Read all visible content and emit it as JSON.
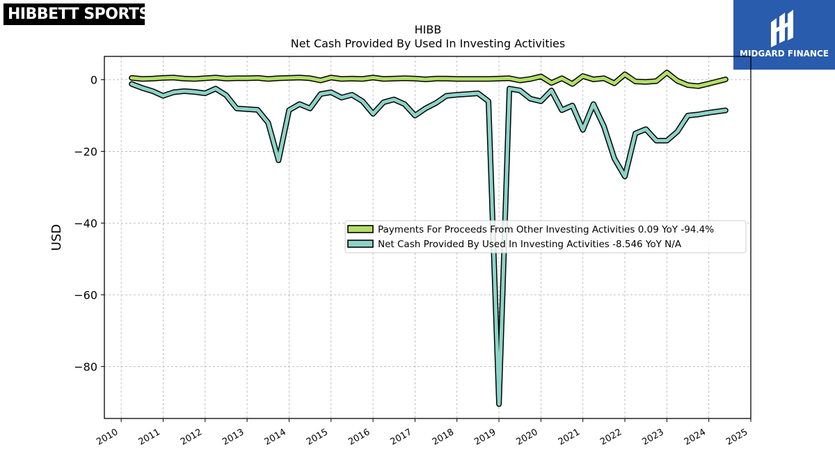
{
  "brand_left": {
    "text": "HIBBETT SPORTS",
    "mark": "®"
  },
  "brand_right": {
    "text": "MIDGARD FINANCE",
    "icon": "midgard-m-icon",
    "color": "#2a5cad"
  },
  "chart_data": {
    "type": "line",
    "title": "HIBB",
    "subtitle": "Net Cash Provided By Used In Investing Activities",
    "xlabel": "",
    "ylabel": "USD",
    "xlim": [
      2009.6,
      2025.0
    ],
    "ylim": [
      -94.5,
      6.5
    ],
    "x_ticks": [
      2010,
      2011,
      2012,
      2013,
      2014,
      2015,
      2016,
      2017,
      2018,
      2019,
      2020,
      2021,
      2022,
      2023,
      2024,
      2025
    ],
    "y_ticks": [
      0,
      -20,
      -40,
      -60,
      -80
    ],
    "y_tick_labels": [
      "0",
      "−20",
      "−40",
      "−60",
      "−80"
    ],
    "grid": true,
    "legend_position": "center-right",
    "series": [
      {
        "name": "Payments For Proceeds From Other Investing Activities",
        "legend_label": "Payments For Proceeds From Other Investing Activities  0.09 YoY -94.4%",
        "color": "#b3de69",
        "points": [
          [
            2010.25,
            0.5
          ],
          [
            2010.5,
            0.2
          ],
          [
            2010.75,
            0.3
          ],
          [
            2011.0,
            0.5
          ],
          [
            2011.25,
            0.6
          ],
          [
            2011.5,
            0.3
          ],
          [
            2011.75,
            0.2
          ],
          [
            2012.0,
            0.4
          ],
          [
            2012.25,
            0.6
          ],
          [
            2012.5,
            0.3
          ],
          [
            2012.75,
            0.4
          ],
          [
            2013.0,
            0.4
          ],
          [
            2013.25,
            0.5
          ],
          [
            2013.5,
            0.2
          ],
          [
            2013.75,
            0.4
          ],
          [
            2014.0,
            0.5
          ],
          [
            2014.25,
            0.6
          ],
          [
            2014.5,
            0.4
          ],
          [
            2014.75,
            -0.2
          ],
          [
            2015.0,
            0.6
          ],
          [
            2015.25,
            0.2
          ],
          [
            2015.5,
            0.3
          ],
          [
            2015.75,
            0.2
          ],
          [
            2016.0,
            0.6
          ],
          [
            2016.25,
            0.2
          ],
          [
            2016.5,
            0.3
          ],
          [
            2016.75,
            0.4
          ],
          [
            2017.0,
            0.3
          ],
          [
            2017.25,
            0.1
          ],
          [
            2017.5,
            0.3
          ],
          [
            2017.75,
            0.3
          ],
          [
            2018.0,
            0.2
          ],
          [
            2018.25,
            0.2
          ],
          [
            2018.5,
            0.2
          ],
          [
            2018.75,
            0.2
          ],
          [
            2019.0,
            0.3
          ],
          [
            2019.25,
            0.4
          ],
          [
            2019.5,
            -0.2
          ],
          [
            2019.75,
            0.2
          ],
          [
            2020.0,
            0.9
          ],
          [
            2020.25,
            -0.9
          ],
          [
            2020.5,
            0.4
          ],
          [
            2020.75,
            -1.2
          ],
          [
            2021.0,
            1.0
          ],
          [
            2021.25,
            0.1
          ],
          [
            2021.5,
            0.4
          ],
          [
            2021.75,
            -1.0
          ],
          [
            2022.0,
            1.5
          ],
          [
            2022.25,
            -0.5
          ],
          [
            2022.5,
            -0.6
          ],
          [
            2022.75,
            -0.4
          ],
          [
            2023.0,
            2.0
          ],
          [
            2023.25,
            -0.3
          ],
          [
            2023.5,
            -1.5
          ],
          [
            2023.75,
            -1.8
          ],
          [
            2024.0,
            -1.1
          ],
          [
            2024.4,
            0.09
          ]
        ]
      },
      {
        "name": "Net Cash Provided By Used In Investing Activities",
        "legend_label": "Net Cash Provided By Used In Investing Activities  -8.546 YoY N/A",
        "color": "#8dd3c7",
        "points": [
          [
            2010.25,
            -1.2
          ],
          [
            2010.5,
            -2.3
          ],
          [
            2010.75,
            -3.2
          ],
          [
            2011.0,
            -4.5
          ],
          [
            2011.25,
            -3.5
          ],
          [
            2011.5,
            -3.2
          ],
          [
            2011.75,
            -3.4
          ],
          [
            2012.0,
            -3.8
          ],
          [
            2012.25,
            -2.5
          ],
          [
            2012.5,
            -4.3
          ],
          [
            2012.75,
            -8.0
          ],
          [
            2013.0,
            -8.2
          ],
          [
            2013.25,
            -8.4
          ],
          [
            2013.5,
            -12.0
          ],
          [
            2013.75,
            -22.5
          ],
          [
            2014.0,
            -8.5
          ],
          [
            2014.25,
            -6.8
          ],
          [
            2014.5,
            -8.0
          ],
          [
            2014.75,
            -4.0
          ],
          [
            2015.0,
            -3.5
          ],
          [
            2015.25,
            -5.0
          ],
          [
            2015.5,
            -4.2
          ],
          [
            2015.75,
            -6.0
          ],
          [
            2016.0,
            -9.5
          ],
          [
            2016.25,
            -6.3
          ],
          [
            2016.5,
            -5.5
          ],
          [
            2016.75,
            -6.8
          ],
          [
            2017.0,
            -10.0
          ],
          [
            2017.25,
            -8.0
          ],
          [
            2017.5,
            -6.5
          ],
          [
            2017.75,
            -4.5
          ],
          [
            2018.0,
            -4.2
          ],
          [
            2018.25,
            -4.0
          ],
          [
            2018.5,
            -3.8
          ],
          [
            2018.75,
            -6.0
          ],
          [
            2019.0,
            -90.5
          ],
          [
            2019.25,
            -2.5
          ],
          [
            2019.5,
            -3.0
          ],
          [
            2019.75,
            -5.3
          ],
          [
            2020.0,
            -6.0
          ],
          [
            2020.25,
            -3.0
          ],
          [
            2020.5,
            -8.5
          ],
          [
            2020.75,
            -7.2
          ],
          [
            2021.0,
            -14.0
          ],
          [
            2021.25,
            -6.8
          ],
          [
            2021.5,
            -13.0
          ],
          [
            2021.75,
            -22.0
          ],
          [
            2022.0,
            -27.0
          ],
          [
            2022.25,
            -15.0
          ],
          [
            2022.5,
            -13.8
          ],
          [
            2022.75,
            -17.0
          ],
          [
            2023.0,
            -17.0
          ],
          [
            2023.25,
            -14.5
          ],
          [
            2023.5,
            -10.0
          ],
          [
            2023.75,
            -9.7
          ],
          [
            2024.0,
            -9.2
          ],
          [
            2024.4,
            -8.546
          ]
        ]
      }
    ]
  }
}
